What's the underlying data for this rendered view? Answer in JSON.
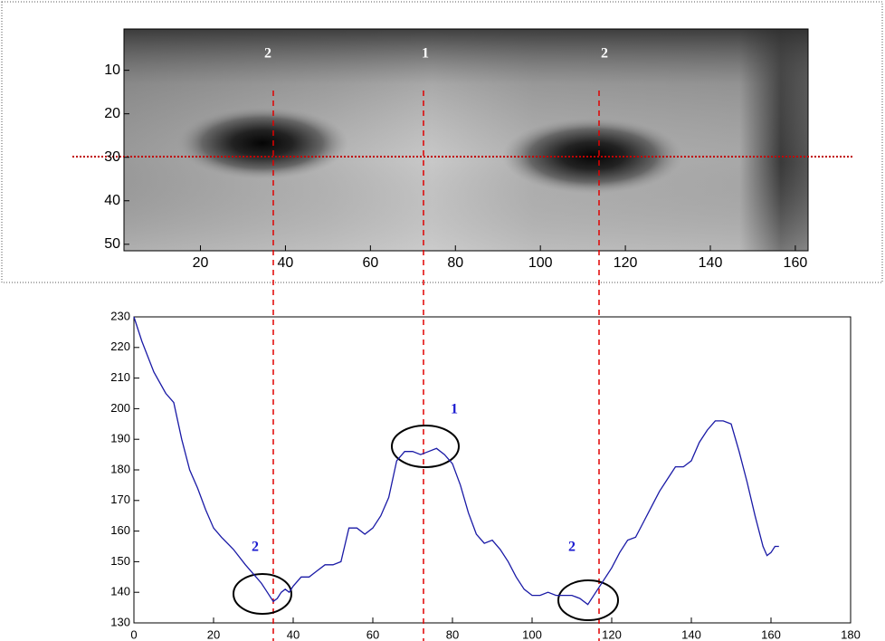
{
  "chart_data": [
    {
      "type": "image",
      "xlim": [
        2,
        163
      ],
      "ylim": [
        0.5,
        51.5
      ],
      "y_reversed": true,
      "xticks": [
        20,
        40,
        60,
        80,
        100,
        120,
        140,
        160
      ],
      "yticks": [
        10,
        20,
        30,
        40,
        50
      ],
      "annotations": [
        "2",
        "1",
        "2"
      ]
    },
    {
      "type": "line",
      "xlim": [
        0,
        180
      ],
      "ylim": [
        130,
        230
      ],
      "xticks": [
        0,
        20,
        40,
        60,
        80,
        100,
        120,
        140,
        160,
        180
      ],
      "yticks": [
        130,
        140,
        150,
        160,
        170,
        180,
        190,
        200,
        210,
        220,
        230
      ],
      "annotations": [
        "2",
        "1",
        "2"
      ],
      "series": [
        {
          "color": "#1a1aa6",
          "x": [
            0,
            2,
            5,
            8,
            10,
            12,
            14,
            16,
            18,
            20,
            22,
            25,
            28,
            30,
            32,
            33,
            35,
            36,
            37,
            38,
            39,
            40,
            42,
            44,
            46,
            48,
            50,
            52,
            54,
            56,
            58,
            60,
            62,
            64,
            66,
            68,
            70,
            72,
            74,
            76,
            78,
            80,
            82,
            84,
            86,
            88,
            90,
            92,
            94,
            96,
            98,
            100,
            102,
            104,
            106,
            108,
            110,
            112,
            114,
            116,
            118,
            120,
            122,
            124,
            126,
            128,
            130,
            132,
            134,
            136,
            138,
            140,
            142,
            144,
            146,
            148,
            150,
            152,
            154,
            156,
            158,
            159,
            160,
            161,
            162
          ],
          "values": [
            230,
            222,
            212,
            205,
            202,
            190,
            180,
            174,
            167,
            161,
            158,
            154,
            149,
            146,
            143,
            141,
            137,
            138,
            140,
            141,
            140,
            142,
            145,
            145,
            147,
            149,
            149,
            150,
            161,
            161,
            159,
            161,
            165,
            171,
            183,
            186,
            186,
            185,
            186,
            187,
            185,
            182,
            175,
            166,
            159,
            156,
            157,
            154,
            150,
            145,
            141,
            139,
            139,
            140,
            139,
            139,
            139,
            138,
            136,
            140,
            144,
            148,
            153,
            157,
            158,
            163,
            168,
            173,
            177,
            181,
            181,
            183,
            189,
            193,
            196,
            196,
            195,
            186,
            176,
            165,
            155,
            152,
            153,
            155,
            155
          ]
        }
      ]
    }
  ]
}
